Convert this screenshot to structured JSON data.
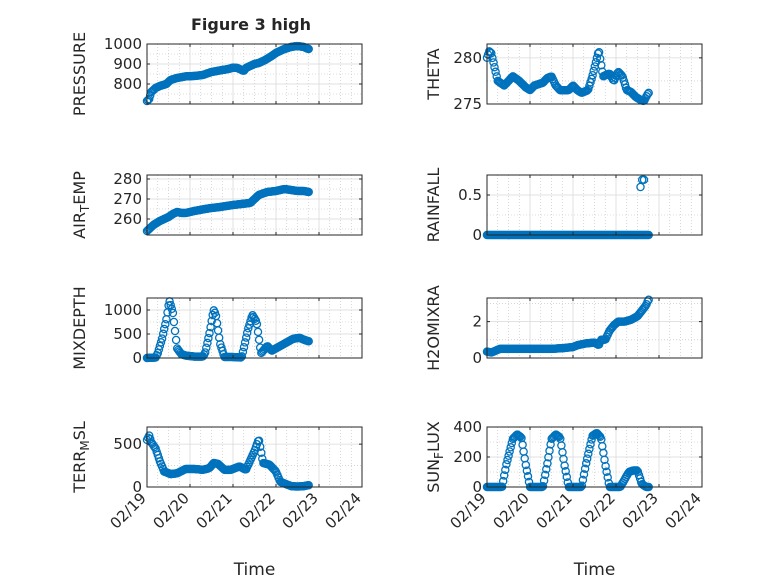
{
  "figure": {
    "title": "Figure 3 high",
    "marker_color": "#0072bd"
  },
  "chart_data": [
    {
      "type": "scatter",
      "ylabel": "PRESSURE",
      "xlim": [
        "02/19",
        "02/24"
      ],
      "ylim": [
        700,
        1000
      ],
      "yticks": [
        800,
        900,
        1000
      ],
      "grid": "on",
      "marker": "circle",
      "x_range": [
        "02/19",
        "02/23"
      ],
      "profile": [
        [
          0,
          715
        ],
        [
          0.05,
          725
        ],
        [
          0.1,
          760
        ],
        [
          0.2,
          780
        ],
        [
          0.3,
          790
        ],
        [
          0.45,
          800
        ],
        [
          0.55,
          820
        ],
        [
          0.7,
          830
        ],
        [
          0.9,
          838
        ],
        [
          1.1,
          840
        ],
        [
          1.3,
          845
        ],
        [
          1.5,
          860
        ],
        [
          1.7,
          868
        ],
        [
          1.9,
          875
        ],
        [
          2.0,
          882
        ],
        [
          2.1,
          880
        ],
        [
          2.2,
          870
        ],
        [
          2.25,
          865
        ],
        [
          2.3,
          880
        ],
        [
          2.5,
          900
        ],
        [
          2.6,
          905
        ],
        [
          2.75,
          920
        ],
        [
          2.9,
          940
        ],
        [
          3.0,
          955
        ],
        [
          3.1,
          965
        ],
        [
          3.2,
          975
        ],
        [
          3.35,
          985
        ],
        [
          3.5,
          990
        ],
        [
          3.65,
          985
        ],
        [
          3.75,
          975
        ]
      ]
    },
    {
      "type": "scatter",
      "ylabel": "THETA",
      "xlim": [
        "02/19",
        "02/24"
      ],
      "ylim": [
        275,
        281.5
      ],
      "yticks": [
        275,
        280
      ],
      "grid": "on",
      "marker": "circle",
      "x_range": [
        "02/19",
        "02/23"
      ],
      "profile": [
        [
          0,
          280
        ],
        [
          0.05,
          280.7
        ],
        [
          0.1,
          280.5
        ],
        [
          0.15,
          279.5
        ],
        [
          0.25,
          277.5
        ],
        [
          0.4,
          277
        ],
        [
          0.5,
          277.5
        ],
        [
          0.6,
          278
        ],
        [
          0.75,
          277.5
        ],
        [
          0.9,
          276.8
        ],
        [
          1.0,
          276.5
        ],
        [
          1.1,
          277
        ],
        [
          1.3,
          277.3
        ],
        [
          1.4,
          277.8
        ],
        [
          1.5,
          278
        ],
        [
          1.6,
          277
        ],
        [
          1.7,
          276.5
        ],
        [
          1.9,
          276.5
        ],
        [
          2.0,
          277
        ],
        [
          2.1,
          276.5
        ],
        [
          2.2,
          276.2
        ],
        [
          2.35,
          276.5
        ],
        [
          2.45,
          278
        ],
        [
          2.6,
          280.8
        ],
        [
          2.7,
          278
        ],
        [
          2.85,
          278.3
        ],
        [
          2.95,
          277.5
        ],
        [
          3.05,
          278.5
        ],
        [
          3.15,
          278
        ],
        [
          3.25,
          276.5
        ],
        [
          3.35,
          276.3
        ],
        [
          3.45,
          275.8
        ],
        [
          3.55,
          275.5
        ],
        [
          3.65,
          275.3
        ],
        [
          3.75,
          276.2
        ]
      ]
    },
    {
      "type": "scatter",
      "ylabel": "AIRTEMP",
      "xlim": [
        "02/19",
        "02/24"
      ],
      "ylim": [
        252,
        282
      ],
      "yticks": [
        260,
        270,
        280
      ],
      "grid": "on",
      "marker": "circle",
      "x_range": [
        "02/19",
        "02/23"
      ],
      "profile": [
        [
          0,
          254
        ],
        [
          0.05,
          255
        ],
        [
          0.15,
          257
        ],
        [
          0.3,
          259
        ],
        [
          0.5,
          261
        ],
        [
          0.6,
          262.5
        ],
        [
          0.7,
          263.5
        ],
        [
          0.8,
          263
        ],
        [
          0.9,
          263
        ],
        [
          1.1,
          264
        ],
        [
          1.3,
          264.8
        ],
        [
          1.5,
          265.5
        ],
        [
          1.7,
          266
        ],
        [
          2.0,
          267
        ],
        [
          2.2,
          267.5
        ],
        [
          2.4,
          268
        ],
        [
          2.5,
          270
        ],
        [
          2.6,
          272
        ],
        [
          2.8,
          273.5
        ],
        [
          3.0,
          274
        ],
        [
          3.1,
          274.5
        ],
        [
          3.2,
          275
        ],
        [
          3.35,
          274.5
        ],
        [
          3.5,
          274
        ],
        [
          3.65,
          274
        ],
        [
          3.75,
          273.5
        ]
      ]
    },
    {
      "type": "scatter",
      "ylabel": "RAINFALL",
      "xlim": [
        "02/19",
        "02/24"
      ],
      "ylim": [
        0,
        0.75
      ],
      "yticks": [
        0,
        0.5
      ],
      "grid": "on",
      "marker": "circle",
      "x_range": [
        "02/19",
        "02/23"
      ],
      "profile": [
        [
          0,
          0
        ],
        [
          3.55,
          0
        ],
        [
          3.75,
          0
        ]
      ],
      "extra_points": [
        [
          3.57,
          0.6
        ],
        [
          3.61,
          0.69
        ],
        [
          3.65,
          0.69
        ]
      ]
    },
    {
      "type": "scatter",
      "ylabel": "MIXDEPTH",
      "xlim": [
        "02/19",
        "02/24"
      ],
      "ylim": [
        0,
        1250
      ],
      "yticks": [
        0,
        500,
        1000
      ],
      "grid": "on",
      "marker": "circle",
      "x_range": [
        "02/19",
        "02/23"
      ],
      "profile": [
        [
          0,
          0
        ],
        [
          0.2,
          10
        ],
        [
          0.25,
          100
        ],
        [
          0.35,
          400
        ],
        [
          0.45,
          800
        ],
        [
          0.52,
          1200
        ],
        [
          0.6,
          950
        ],
        [
          0.7,
          200
        ],
        [
          0.8,
          80
        ],
        [
          0.9,
          50
        ],
        [
          1.1,
          30
        ],
        [
          1.3,
          30
        ],
        [
          1.35,
          100
        ],
        [
          1.45,
          500
        ],
        [
          1.55,
          1000
        ],
        [
          1.6,
          900
        ],
        [
          1.7,
          300
        ],
        [
          1.8,
          20
        ],
        [
          2.0,
          20
        ],
        [
          2.2,
          10
        ],
        [
          2.25,
          200
        ],
        [
          2.35,
          600
        ],
        [
          2.45,
          900
        ],
        [
          2.55,
          750
        ],
        [
          2.65,
          100
        ],
        [
          2.8,
          250
        ],
        [
          2.9,
          150
        ],
        [
          3.0,
          200
        ],
        [
          3.2,
          300
        ],
        [
          3.4,
          400
        ],
        [
          3.55,
          420
        ],
        [
          3.65,
          380
        ],
        [
          3.75,
          350
        ]
      ]
    },
    {
      "type": "scatter",
      "ylabel": "H2OMIXRA",
      "xlim": [
        "02/19",
        "02/24"
      ],
      "ylim": [
        0,
        3.3
      ],
      "yticks": [
        0,
        2
      ],
      "grid": "on",
      "marker": "circle",
      "x_range": [
        "02/19",
        "02/23"
      ],
      "profile": [
        [
          0,
          0.35
        ],
        [
          0.1,
          0.3
        ],
        [
          0.2,
          0.4
        ],
        [
          0.3,
          0.5
        ],
        [
          0.5,
          0.5
        ],
        [
          0.8,
          0.5
        ],
        [
          1.2,
          0.5
        ],
        [
          1.5,
          0.5
        ],
        [
          1.8,
          0.55
        ],
        [
          2.0,
          0.6
        ],
        [
          2.1,
          0.7
        ],
        [
          2.3,
          0.8
        ],
        [
          2.5,
          0.85
        ],
        [
          2.6,
          0.7
        ],
        [
          2.65,
          1.0
        ],
        [
          2.75,
          1.0
        ],
        [
          2.85,
          1.5
        ],
        [
          2.95,
          1.8
        ],
        [
          3.05,
          2.0
        ],
        [
          3.2,
          2.0
        ],
        [
          3.35,
          2.1
        ],
        [
          3.5,
          2.3
        ],
        [
          3.6,
          2.6
        ],
        [
          3.7,
          2.9
        ],
        [
          3.75,
          3.2
        ]
      ]
    },
    {
      "type": "scatter",
      "ylabel": "TERRMSL",
      "xlim": [
        "02/19",
        "02/24"
      ],
      "ylim": [
        0,
        700
      ],
      "yticks": [
        0,
        500
      ],
      "grid": "on",
      "marker": "circle",
      "x_range": [
        "02/19",
        "02/23"
      ],
      "profile": [
        [
          0,
          550
        ],
        [
          0.05,
          600
        ],
        [
          0.1,
          520
        ],
        [
          0.2,
          450
        ],
        [
          0.3,
          300
        ],
        [
          0.4,
          180
        ],
        [
          0.55,
          150
        ],
        [
          0.7,
          160
        ],
        [
          0.9,
          210
        ],
        [
          1.1,
          210
        ],
        [
          1.3,
          200
        ],
        [
          1.45,
          220
        ],
        [
          1.55,
          280
        ],
        [
          1.65,
          270
        ],
        [
          1.8,
          200
        ],
        [
          1.95,
          200
        ],
        [
          2.05,
          220
        ],
        [
          2.15,
          240
        ],
        [
          2.3,
          200
        ],
        [
          2.5,
          420
        ],
        [
          2.6,
          560
        ],
        [
          2.7,
          280
        ],
        [
          2.85,
          260
        ],
        [
          3.0,
          180
        ],
        [
          3.1,
          60
        ],
        [
          3.2,
          40
        ],
        [
          3.35,
          10
        ],
        [
          3.5,
          5
        ],
        [
          3.65,
          10
        ],
        [
          3.75,
          20
        ]
      ]
    },
    {
      "type": "scatter",
      "ylabel": "SUNFLUX",
      "xlim": [
        "02/19",
        "02/24"
      ],
      "ylim": [
        0,
        400
      ],
      "yticks": [
        0,
        200,
        400
      ],
      "grid": "on",
      "marker": "circle",
      "x_range": [
        "02/19",
        "02/23"
      ],
      "profile": [
        [
          0,
          0
        ],
        [
          0.2,
          0
        ],
        [
          0.35,
          0
        ],
        [
          0.45,
          150
        ],
        [
          0.6,
          320
        ],
        [
          0.7,
          350
        ],
        [
          0.8,
          330
        ],
        [
          0.9,
          150
        ],
        [
          1.0,
          0
        ],
        [
          1.3,
          0
        ],
        [
          1.4,
          150
        ],
        [
          1.5,
          320
        ],
        [
          1.6,
          350
        ],
        [
          1.7,
          330
        ],
        [
          1.8,
          150
        ],
        [
          1.9,
          0
        ],
        [
          2.2,
          0
        ],
        [
          2.3,
          150
        ],
        [
          2.45,
          340
        ],
        [
          2.55,
          360
        ],
        [
          2.65,
          330
        ],
        [
          2.75,
          150
        ],
        [
          2.85,
          0
        ],
        [
          3.1,
          0
        ],
        [
          3.2,
          50
        ],
        [
          3.3,
          100
        ],
        [
          3.4,
          110
        ],
        [
          3.5,
          110
        ],
        [
          3.6,
          20
        ],
        [
          3.7,
          0
        ],
        [
          3.75,
          0
        ]
      ]
    }
  ],
  "axes": {
    "xtick_labels": [
      "02/19",
      "02/20",
      "02/21",
      "02/22",
      "02/23",
      "02/24"
    ],
    "xlabel": "Time",
    "ylabels": [
      {
        "main": "PRESSURE"
      },
      {
        "main": "THETA"
      },
      {
        "pre": "AIR",
        "sub": "T",
        "post": "EMP"
      },
      {
        "main": "RAINFALL"
      },
      {
        "main": "MIXDEPTH"
      },
      {
        "main": "H2OMIXRA"
      },
      {
        "pre": "TERR",
        "sub": "M",
        "post": "SL"
      },
      {
        "pre": "SUN",
        "sub": "F",
        "post": "LUX"
      }
    ]
  }
}
